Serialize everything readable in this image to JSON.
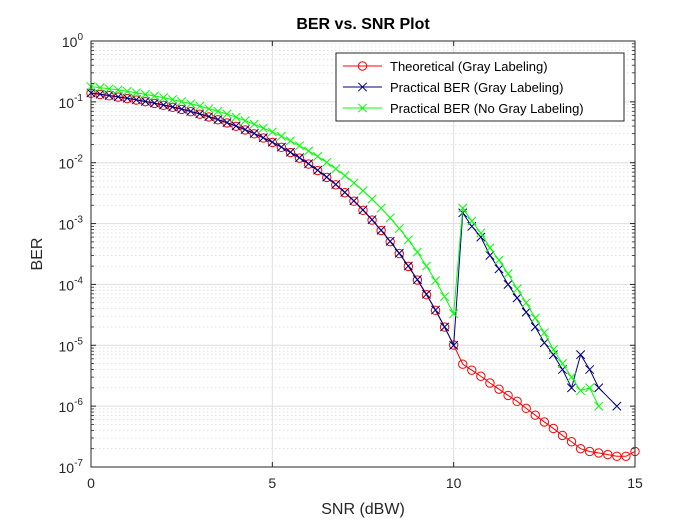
{
  "chart_data": {
    "type": "line",
    "title": "BER vs. SNR Plot",
    "xlabel": "SNR (dBW)",
    "ylabel": "BER",
    "xlim": [
      0,
      15
    ],
    "ylim": [
      1e-07,
      1
    ],
    "yscale": "log",
    "grid": true,
    "minor_grid": true,
    "legend_position": "top-right",
    "x_ticks": [
      {
        "value": 0,
        "label": "0"
      },
      {
        "value": 5,
        "label": "5"
      },
      {
        "value": 10,
        "label": "10"
      },
      {
        "value": 15,
        "label": "15"
      }
    ],
    "y_ticks": [
      {
        "value": 1,
        "base": "10",
        "exp": "0"
      },
      {
        "value": 0.1,
        "base": "10",
        "exp": "-1"
      },
      {
        "value": 0.01,
        "base": "10",
        "exp": "-2"
      },
      {
        "value": 0.001,
        "base": "10",
        "exp": "-3"
      },
      {
        "value": 0.0001,
        "base": "10",
        "exp": "-4"
      },
      {
        "value": 1e-05,
        "base": "10",
        "exp": "-5"
      },
      {
        "value": 1e-06,
        "base": "10",
        "exp": "-6"
      },
      {
        "value": 1e-07,
        "base": "10",
        "exp": "-7"
      }
    ],
    "series": [
      {
        "name": "Theoretical (Gray Labeling)",
        "color": "#ff0000",
        "marker": "circle",
        "x": [
          0,
          0.25,
          0.5,
          0.75,
          1,
          1.25,
          1.5,
          1.75,
          2,
          2.25,
          2.5,
          2.75,
          3,
          3.25,
          3.5,
          3.75,
          4,
          4.25,
          4.5,
          4.75,
          5,
          5.25,
          5.5,
          5.75,
          6,
          6.25,
          6.5,
          6.75,
          7,
          7.25,
          7.5,
          7.75,
          8,
          8.25,
          8.5,
          8.75,
          9,
          9.25,
          9.5,
          9.75,
          10,
          10.25,
          10.5,
          10.75,
          11,
          11.25,
          11.5,
          11.75,
          12,
          12.25,
          12.5,
          12.75,
          13,
          13.25,
          13.5,
          13.75,
          14,
          14.25,
          14.5,
          14.75,
          15
        ],
        "y": [
          0.1383,
          0.1322,
          0.126,
          0.1197,
          0.1134,
          0.1071,
          0.1007,
          0.0943,
          0.0879,
          0.0815,
          0.0752,
          0.0689,
          0.0627,
          0.0566,
          0.0507,
          0.0451,
          0.0397,
          0.0346,
          0.0299,
          0.0255,
          0.0215,
          0.0179,
          0.0147,
          0.0119,
          0.00949,
          0.00744,
          0.00573,
          0.00434,
          0.00321,
          0.00233,
          0.00165,
          0.00114,
          0.000768,
          0.000504,
          0.000321,
          0.000198,
          0.000118,
          6.78e-05,
          3.75e-05,
          1.99e-05,
          1.01e-05,
          4.9e-06,
          3.9e-06,
          3.1e-06,
          2.4e-06,
          1.9e-06,
          1.5e-06,
          1.2e-06,
          9.2e-07,
          7.1e-07,
          5.5e-07,
          4.3e-07,
          3.3e-07,
          2.6e-07,
          2e-07,
          1.8e-07,
          1.7e-07,
          1.6e-07,
          1.5e-07,
          1.5e-07,
          1.8e-07
        ]
      },
      {
        "name": "Practical BER (Gray Labeling)",
        "color": "#00007f",
        "marker": "x",
        "x": [
          0,
          0.25,
          0.5,
          0.75,
          1,
          1.25,
          1.5,
          1.75,
          2,
          2.25,
          2.5,
          2.75,
          3,
          3.25,
          3.5,
          3.75,
          4,
          4.25,
          4.5,
          4.75,
          5,
          5.25,
          5.5,
          5.75,
          6,
          6.25,
          6.5,
          6.75,
          7,
          7.25,
          7.5,
          7.75,
          8,
          8.25,
          8.5,
          8.75,
          9,
          9.25,
          9.5,
          9.75,
          10,
          10.25,
          10.5,
          10.75,
          11,
          11.25,
          11.5,
          11.75,
          12,
          12.25,
          12.5,
          12.75,
          13,
          13.25,
          13.5,
          13.75,
          14,
          14.5
        ],
        "y": [
          0.14,
          0.1338,
          0.1275,
          0.1212,
          0.1148,
          0.1084,
          0.102,
          0.0955,
          0.089,
          0.0826,
          0.0762,
          0.0698,
          0.0635,
          0.0574,
          0.0514,
          0.0457,
          0.0402,
          0.0351,
          0.0303,
          0.0258,
          0.0218,
          0.0181,
          0.0149,
          0.0121,
          0.00962,
          0.00754,
          0.00581,
          0.0044,
          0.00326,
          0.00237,
          0.00168,
          0.00116,
          0.00078,
          0.000512,
          0.000326,
          0.000201,
          0.00012,
          6.9e-05,
          3.8e-05,
          2e-05,
          1e-05,
          0.0015,
          0.0009,
          0.0006,
          0.0003,
          0.00018,
          0.0001,
          6e-05,
          3.5e-05,
          2e-05,
          1.1e-05,
          7e-06,
          4e-06,
          2e-06,
          7e-06,
          4e-06,
          2e-06,
          1e-06
        ]
      },
      {
        "name": "Practical BER (No Gray Labeling)",
        "color": "#00ff00",
        "marker": "x",
        "x": [
          0,
          0.25,
          0.5,
          0.75,
          1,
          1.25,
          1.5,
          1.75,
          2,
          2.25,
          2.5,
          2.75,
          3,
          3.25,
          3.5,
          3.75,
          4,
          4.25,
          4.5,
          4.75,
          5,
          5.25,
          5.5,
          5.75,
          6,
          6.25,
          6.5,
          6.75,
          7,
          7.25,
          7.5,
          7.75,
          8,
          8.25,
          8.5,
          8.75,
          9,
          9.25,
          9.5,
          9.75,
          10,
          10.25,
          10.5,
          10.75,
          11,
          11.25,
          11.5,
          11.75,
          12,
          12.25,
          12.5,
          12.75,
          13,
          13.25,
          13.5,
          13.75,
          14
        ],
        "y": [
          0.178,
          0.171,
          0.164,
          0.157,
          0.149,
          0.141,
          0.133,
          0.125,
          0.117,
          0.109,
          0.101,
          0.093,
          0.085,
          0.077,
          0.07,
          0.063,
          0.056,
          0.049,
          0.043,
          0.037,
          0.032,
          0.0273,
          0.0229,
          0.019,
          0.0156,
          0.0127,
          0.0101,
          0.00795,
          0.00614,
          0.00466,
          0.00347,
          0.00252,
          0.00179,
          0.00124,
          0.00083,
          0.00054,
          0.00034,
          0.0002,
          0.000115,
          6.3e-05,
          3.3e-05,
          0.0018,
          0.0011,
          0.0007,
          0.0004,
          0.00025,
          0.00015,
          8.5e-05,
          5e-05,
          2.8e-05,
          1.6e-05,
          8.5e-06,
          5e-06,
          3e-06,
          1.8e-06,
          2e-06,
          1e-06
        ]
      }
    ]
  }
}
